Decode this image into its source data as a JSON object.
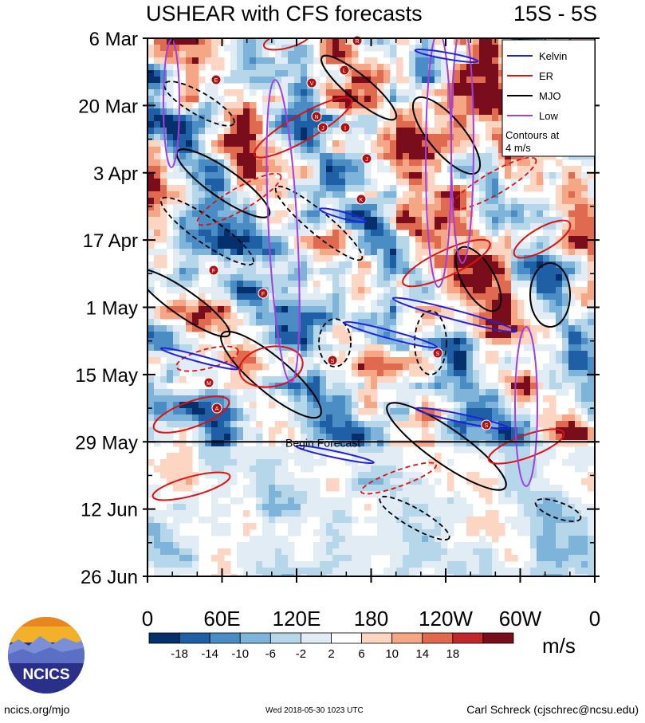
{
  "chart_data": {
    "type": "heatmap",
    "title": "USHEAR with CFS forecasts",
    "title_right": "15S - 5S",
    "y_ticks": [
      "6 Mar",
      "20 Mar",
      "3 Apr",
      "17 Apr",
      "1 May",
      "15 May",
      "29 May",
      "12 Jun",
      "26 Jun"
    ],
    "x_ticks": [
      "0",
      "60E",
      "120E",
      "180",
      "120W",
      "60W",
      "0"
    ],
    "xlim": [
      0,
      360
    ],
    "ylim": [
      "2018-03-06",
      "2018-06-26"
    ],
    "colorbar": {
      "levels": [
        -18,
        -14,
        -10,
        -6,
        -2,
        2,
        6,
        10,
        14,
        18
      ],
      "labels": [
        "-18",
        "-14",
        "-10",
        "-6",
        "-2",
        "2",
        "6",
        "10",
        "14",
        "18"
      ],
      "colors": [
        "#05306b",
        "#1f5fa6",
        "#4a8cc4",
        "#7fb4da",
        "#b6d6ea",
        "#e1ecf5",
        "#ffffff",
        "#fcd6c2",
        "#f4a685",
        "#e06a4f",
        "#c0282d",
        "#7a0d1c"
      ],
      "units": "m/s"
    },
    "legend": {
      "placement": "top-right",
      "entries": [
        {
          "name": "Kelvin",
          "color": "#2020e0"
        },
        {
          "name": "ER",
          "color": "#e01010"
        },
        {
          "name": "MJO",
          "color": "#000000"
        },
        {
          "name": "Low",
          "color": "#a040e0"
        }
      ],
      "note_line1": "Contours at",
      "note_line2": "4 m/s"
    },
    "annotation": "Begin Forecast",
    "forecast_start": "2018-05-29"
  },
  "footer": {
    "left": "ncics.org/mjo",
    "middle": "Wed 2018-05-30 1023 UTC",
    "right": "Carl Schreck (cjschrec@ncsu.edu)"
  },
  "logo": {
    "text": "NCICS"
  },
  "storm_markers": [
    "R",
    "E",
    "L",
    "V",
    "N",
    "J",
    "I",
    "J",
    "K",
    "F",
    "F",
    "S",
    "M",
    "A",
    "S",
    "S"
  ]
}
